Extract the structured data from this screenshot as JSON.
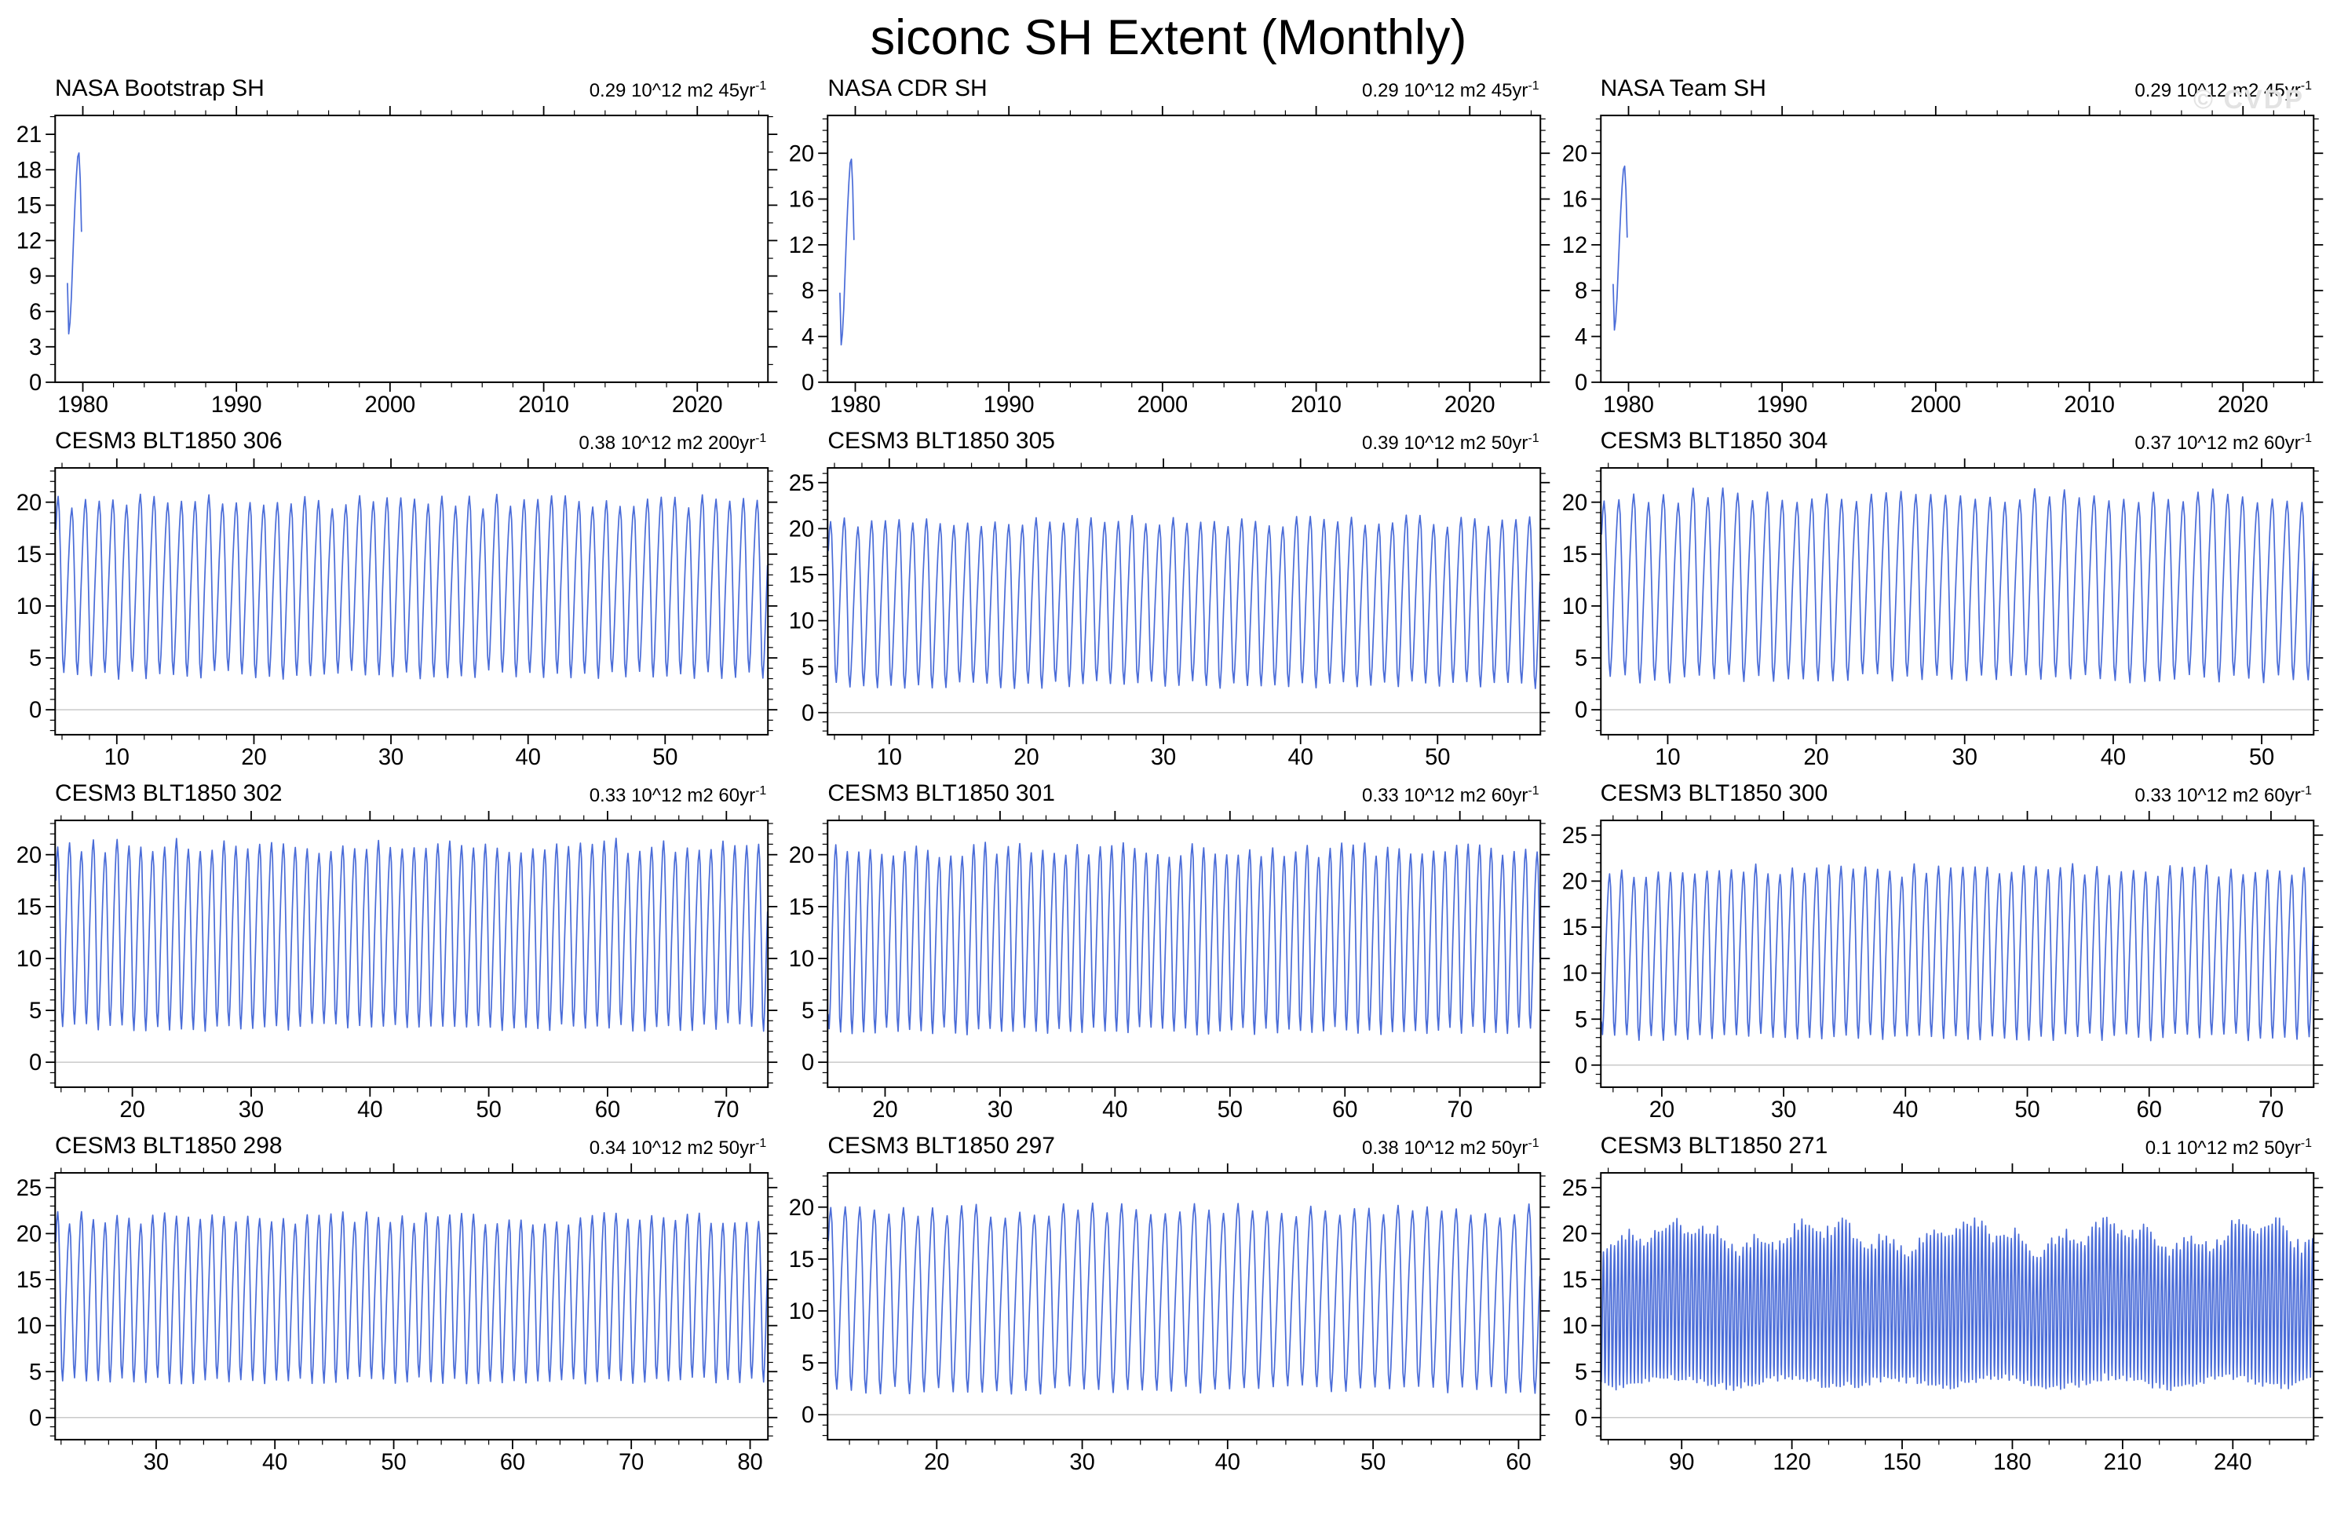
{
  "page": {
    "title": "siconc SH Extent (Monthly)",
    "watermark": "© CVDP"
  },
  "style": {
    "line_color": "#4a6cd8",
    "frame_color": "#000000",
    "zero_line_color": "#c9c9c9"
  },
  "chart_data": [
    {
      "type": "line",
      "title": "NASA Bootstrap SH",
      "trend_label": "0.29 10^12 m2 45yr",
      "trend_sup": "-1",
      "x": {
        "min": 1978.2,
        "max": 2024.6,
        "major_ticks": [
          1980,
          1990,
          2000,
          2010,
          2020
        ],
        "minor_step": 2
      },
      "y": {
        "min": 0,
        "max": 22.6,
        "major_ticks": [
          0,
          3,
          6,
          9,
          12,
          15,
          18,
          21
        ],
        "minor_step": 1.5
      },
      "series": {
        "start": 1979.0,
        "end": 2024.4,
        "season_min": 3.6,
        "season_max": 19.4,
        "points_per_year": 12
      },
      "zero_line": false,
      "seed": 11
    },
    {
      "type": "line",
      "title": "NASA CDR SH",
      "trend_label": "0.29 10^12 m2 45yr",
      "trend_sup": "-1",
      "x": {
        "min": 1978.2,
        "max": 2024.6,
        "major_ticks": [
          1980,
          1990,
          2000,
          2010,
          2020
        ],
        "minor_step": 2
      },
      "y": {
        "min": 0,
        "max": 23.3,
        "major_ticks": [
          0,
          4,
          8,
          12,
          16,
          20
        ],
        "minor_step": 1
      },
      "series": {
        "start": 1979.0,
        "end": 2024.4,
        "season_min": 3.0,
        "season_max": 19.3,
        "points_per_year": 12
      },
      "zero_line": false,
      "seed": 22
    },
    {
      "type": "line",
      "title": "NASA Team SH",
      "trend_label": "0.29 10^12 m2 45yr",
      "trend_sup": "-1",
      "x": {
        "min": 1978.2,
        "max": 2024.6,
        "major_ticks": [
          1980,
          1990,
          2000,
          2010,
          2020
        ],
        "minor_step": 2
      },
      "y": {
        "min": 0,
        "max": 23.3,
        "major_ticks": [
          0,
          4,
          8,
          12,
          16,
          20
        ],
        "minor_step": 1
      },
      "series": {
        "start": 1979.0,
        "end": 2024.4,
        "season_min": 3.9,
        "season_max": 18.8,
        "points_per_year": 12
      },
      "zero_line": false,
      "seed": 33
    },
    {
      "type": "line",
      "title": "CESM3 BLT1850 306",
      "trend_label": "0.38 10^12 m2 200yr",
      "trend_sup": "-1",
      "x": {
        "min": 5.5,
        "max": 57.5,
        "major_ticks": [
          10,
          20,
          30,
          40,
          50
        ],
        "minor_step": 2
      },
      "y": {
        "min": -2.4,
        "max": 23.3,
        "major_ticks": [
          0,
          5,
          10,
          15,
          20
        ],
        "minor_step": 1
      },
      "series": {
        "start": 5.55,
        "end": 57.5,
        "season_min": 2.2,
        "season_max": 20.2,
        "points_per_year": 12
      },
      "zero_line": true,
      "seed": 44
    },
    {
      "type": "line",
      "title": "CESM3 BLT1850 305",
      "trend_label": "0.39 10^12 m2 50yr",
      "trend_sup": "-1",
      "x": {
        "min": 5.5,
        "max": 57.5,
        "major_ticks": [
          10,
          20,
          30,
          40,
          50
        ],
        "minor_step": 2
      },
      "y": {
        "min": -2.4,
        "max": 26.6,
        "major_ticks": [
          0,
          5,
          10,
          15,
          20,
          25
        ],
        "minor_step": 1
      },
      "series": {
        "start": 5.55,
        "end": 57.5,
        "season_min": 1.8,
        "season_max": 21.0,
        "points_per_year": 12
      },
      "zero_line": true,
      "seed": 55
    },
    {
      "type": "line",
      "title": "CESM3 BLT1850 304",
      "trend_label": "0.37 10^12 m2 60yr",
      "trend_sup": "-1",
      "x": {
        "min": 5.5,
        "max": 53.5,
        "major_ticks": [
          10,
          20,
          30,
          40,
          50
        ],
        "minor_step": 2
      },
      "y": {
        "min": -2.4,
        "max": 23.3,
        "major_ticks": [
          0,
          5,
          10,
          15,
          20
        ],
        "minor_step": 1
      },
      "series": {
        "start": 5.55,
        "end": 53.5,
        "season_min": 1.8,
        "season_max": 20.8,
        "points_per_year": 12
      },
      "zero_line": true,
      "seed": 66
    },
    {
      "type": "line",
      "title": "CESM3 BLT1850 302",
      "trend_label": "0.33 10^12 m2 60yr",
      "trend_sup": "-1",
      "x": {
        "min": 13.5,
        "max": 73.5,
        "major_ticks": [
          20,
          30,
          40,
          50,
          60,
          70
        ],
        "minor_step": 2
      },
      "y": {
        "min": -2.4,
        "max": 23.3,
        "major_ticks": [
          0,
          5,
          10,
          15,
          20
        ],
        "minor_step": 1
      },
      "series": {
        "start": 13.55,
        "end": 73.5,
        "season_min": 2.2,
        "season_max": 21.0,
        "points_per_year": 12
      },
      "zero_line": true,
      "seed": 77
    },
    {
      "type": "line",
      "title": "CESM3 BLT1850 301",
      "trend_label": "0.33 10^12 m2 60yr",
      "trend_sup": "-1",
      "x": {
        "min": 15,
        "max": 77,
        "major_ticks": [
          20,
          30,
          40,
          50,
          60,
          70
        ],
        "minor_step": 2
      },
      "y": {
        "min": -2.4,
        "max": 23.3,
        "major_ticks": [
          0,
          5,
          10,
          15,
          20
        ],
        "minor_step": 1
      },
      "series": {
        "start": 15.05,
        "end": 77,
        "season_min": 1.8,
        "season_max": 20.6,
        "points_per_year": 12
      },
      "zero_line": true,
      "seed": 88
    },
    {
      "type": "line",
      "title": "CESM3 BLT1850 300",
      "trend_label": "0.33 10^12 m2 60yr",
      "trend_sup": "-1",
      "x": {
        "min": 15,
        "max": 73.5,
        "major_ticks": [
          20,
          30,
          40,
          50,
          60,
          70
        ],
        "minor_step": 2
      },
      "y": {
        "min": -2.4,
        "max": 26.6,
        "major_ticks": [
          0,
          5,
          10,
          15,
          20,
          25
        ],
        "minor_step": 1
      },
      "series": {
        "start": 15.05,
        "end": 73.5,
        "season_min": 1.8,
        "season_max": 21.3,
        "points_per_year": 12
      },
      "zero_line": true,
      "seed": 99
    },
    {
      "type": "line",
      "title": "CESM3 BLT1850 298",
      "trend_label": "0.34 10^12 m2 50yr",
      "trend_sup": "-1",
      "x": {
        "min": 21.5,
        "max": 81.5,
        "major_ticks": [
          30,
          40,
          50,
          60,
          70,
          80
        ],
        "minor_step": 2
      },
      "y": {
        "min": -2.4,
        "max": 26.6,
        "major_ticks": [
          0,
          5,
          10,
          15,
          20,
          25
        ],
        "minor_step": 1
      },
      "series": {
        "start": 21.55,
        "end": 81.5,
        "season_min": 2.8,
        "season_max": 21.8,
        "points_per_year": 12
      },
      "zero_line": true,
      "seed": 111
    },
    {
      "type": "line",
      "title": "CESM3 BLT1850 297",
      "trend_label": "0.38 10^12 m2 50yr",
      "trend_sup": "-1",
      "x": {
        "min": 12.5,
        "max": 61.5,
        "major_ticks": [
          20,
          30,
          40,
          50,
          60
        ],
        "minor_step": 2
      },
      "y": {
        "min": -2.4,
        "max": 23.3,
        "major_ticks": [
          0,
          5,
          10,
          15,
          20
        ],
        "minor_step": 1
      },
      "series": {
        "start": 12.55,
        "end": 61.5,
        "season_min": 1.2,
        "season_max": 19.8,
        "points_per_year": 12
      },
      "zero_line": true,
      "seed": 122
    },
    {
      "type": "line",
      "title": "CESM3 BLT1850 271",
      "trend_label": "0.1 10^12 m2 50yr",
      "trend_sup": "-1",
      "x": {
        "min": 68,
        "max": 262,
        "major_ticks": [
          90,
          120,
          150,
          180,
          210,
          240
        ],
        "minor_step": 10
      },
      "y": {
        "min": -2.4,
        "max": 26.6,
        "major_ticks": [
          0,
          5,
          10,
          15,
          20,
          25
        ],
        "minor_step": 1
      },
      "series": {
        "start": 68.05,
        "end": 262,
        "season_min": 2.8,
        "season_max": 19.8,
        "points_per_year": 12,
        "mod": true
      },
      "zero_line": true,
      "seed": 133
    }
  ]
}
